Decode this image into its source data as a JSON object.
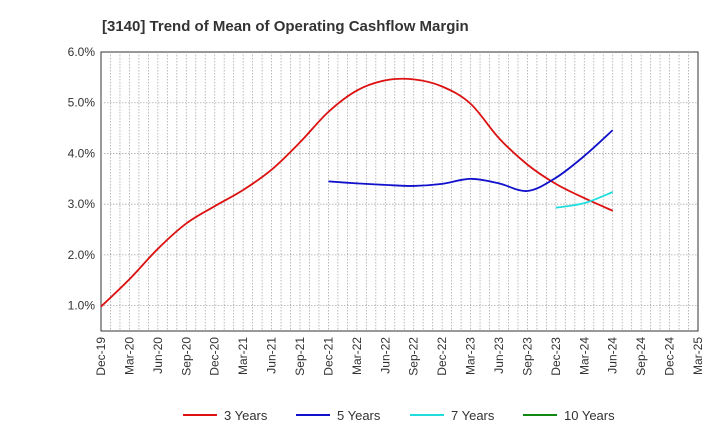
{
  "chart_data": {
    "type": "line",
    "title": "[3140]  Trend of Mean of Operating Cashflow Margin",
    "xlabel": "",
    "ylabel": "",
    "x_ticks": [
      "Dec-19",
      "Mar-20",
      "Jun-20",
      "Sep-20",
      "Dec-20",
      "Mar-21",
      "Jun-21",
      "Sep-21",
      "Dec-21",
      "Mar-22",
      "Jun-22",
      "Sep-22",
      "Dec-22",
      "Mar-23",
      "Jun-23",
      "Sep-23",
      "Dec-23",
      "Mar-24",
      "Jun-24",
      "Sep-24",
      "Dec-24",
      "Mar-25"
    ],
    "y_ticks": [
      "1.0%",
      "2.0%",
      "3.0%",
      "4.0%",
      "5.0%",
      "6.0%"
    ],
    "ylim": [
      0.5,
      6.0
    ],
    "grid": true,
    "legend_position": "bottom",
    "series": [
      {
        "name": "3 Years",
        "color": "#dd1111",
        "x": [
          "Dec-19",
          "Mar-20",
          "Jun-20",
          "Sep-20",
          "Dec-20",
          "Mar-21",
          "Jun-21",
          "Sep-21",
          "Dec-21",
          "Mar-22",
          "Jun-22",
          "Sep-22",
          "Dec-22",
          "Mar-23",
          "Jun-23",
          "Sep-23",
          "Dec-23",
          "Mar-24",
          "Jun-24"
        ],
        "values": [
          0.98,
          1.52,
          2.12,
          2.62,
          2.96,
          3.28,
          3.68,
          4.22,
          4.82,
          5.24,
          5.44,
          5.46,
          5.32,
          4.98,
          4.3,
          3.78,
          3.4,
          3.12,
          2.87
        ]
      },
      {
        "name": "5 Years",
        "color": "#1111cc",
        "x": [
          "Dec-21",
          "Mar-22",
          "Jun-22",
          "Sep-22",
          "Dec-22",
          "Mar-23",
          "Jun-23",
          "Sep-23",
          "Dec-23",
          "Mar-24",
          "Jun-24"
        ],
        "values": [
          3.45,
          3.41,
          3.38,
          3.36,
          3.4,
          3.5,
          3.41,
          3.26,
          3.52,
          3.95,
          4.46
        ]
      },
      {
        "name": "7 Years",
        "color": "#22dddd",
        "x": [
          "Dec-23",
          "Mar-24",
          "Jun-24"
        ],
        "values": [
          2.93,
          3.02,
          3.24
        ]
      },
      {
        "name": "10 Years",
        "color": "#118811",
        "x": [],
        "values": []
      }
    ]
  }
}
